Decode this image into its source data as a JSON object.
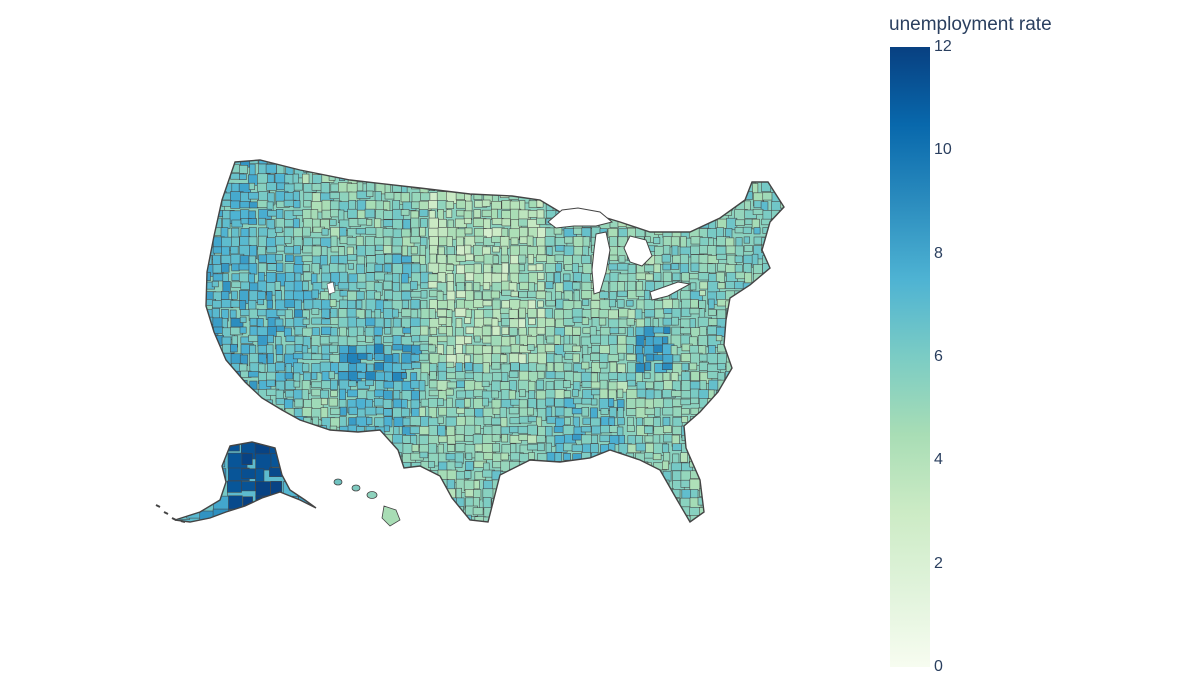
{
  "colorbar": {
    "title": "unemployment rate",
    "min": 0,
    "max": 12,
    "ticks": [
      "0",
      "2",
      "4",
      "6",
      "8",
      "10",
      "12"
    ],
    "colorscale": [
      "#f7fcf0",
      "#e0f3db",
      "#ccebc5",
      "#a8ddb5",
      "#7bccc4",
      "#4eb3d3",
      "#2b8cbe",
      "#0868ac",
      "#084081"
    ]
  },
  "map": {
    "type": "choropleth",
    "geography": "usa-counties",
    "border_color": "#444444",
    "background": "#ffffff"
  }
}
